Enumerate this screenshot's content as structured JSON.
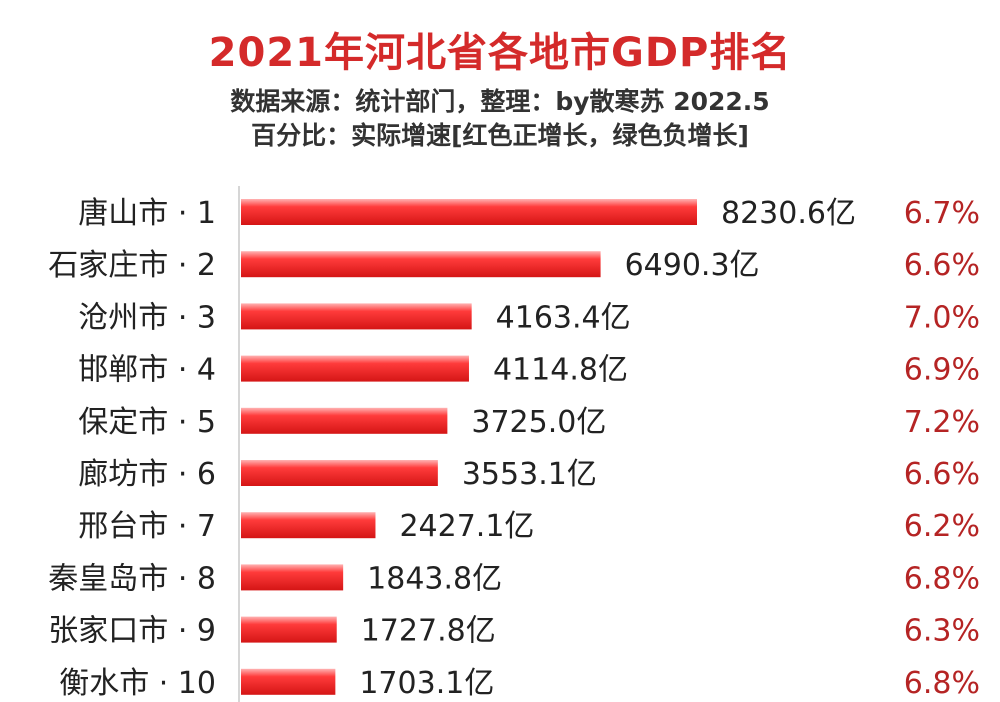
{
  "header": {
    "title": "2021年河北省各地市GDP排名",
    "source_line": "数据来源：统计部门，整理：by散寒苏  2022.5",
    "legend_line": "百分比：实际增速[红色正增长，绿色负增长]"
  },
  "colors": {
    "title": "#d42a2a",
    "bar": "#e8201f",
    "bar_highlight": "#ff9a9a",
    "positive_growth": "#b52424",
    "negative_growth": "#2e9a3a",
    "axis": "#c8c8c8"
  },
  "chart_data": {
    "type": "bar",
    "orientation": "horizontal",
    "categories": [
      "唐山市 · 1",
      "石家庄市 · 2",
      "沧州市 · 3",
      "邯郸市 · 4",
      "保定市 · 5",
      "廊坊市 · 6",
      "邢台市 · 7",
      "秦皇岛市 · 8",
      "张家口市 · 9",
      "衡水市 · 10"
    ],
    "series": [
      {
        "values": [
          8230.6,
          6490.3,
          4163.4,
          4114.8,
          3725.0,
          3553.1,
          2427.1,
          1843.8,
          1727.8,
          1703.1
        ],
        "value_labels": [
          "8230.6亿",
          "6490.3亿",
          "4163.4亿",
          "4114.8亿",
          "3725.0亿",
          "3553.1亿",
          "2427.1亿",
          "1843.8亿",
          "1727.8亿",
          "1703.1亿"
        ]
      }
    ],
    "growth_labels": [
      "6.7%",
      "6.6%",
      "7.0%",
      "6.9%",
      "7.2%",
      "6.6%",
      "6.2%",
      "6.8%",
      "6.3%",
      "6.8%"
    ],
    "xlim": [
      0,
      8230.6
    ],
    "grid": false,
    "legend": "none"
  }
}
